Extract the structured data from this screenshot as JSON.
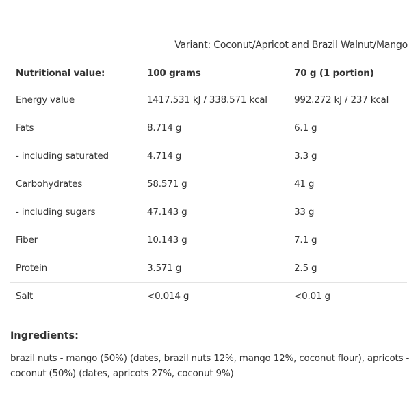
{
  "variant": "Variant: Coconut/Apricot and Brazil Walnut/Mango",
  "table": {
    "headers": [
      "Nutritional value:",
      "100 grams",
      "70 g (1 portion)"
    ],
    "rows": [
      {
        "label": "Energy value",
        "per100": "1417.531 kJ / 338.571 kcal",
        "portion": "992.272 kJ / 237 kcal"
      },
      {
        "label": "Fats",
        "per100": "8.714 g",
        "portion": "6.1 g"
      },
      {
        "label": "- including saturated",
        "per100": "4.714 g",
        "portion": "3.3 g"
      },
      {
        "label": "Carbohydrates",
        "per100": "58.571 g",
        "portion": "41 g"
      },
      {
        "label": "- including sugars",
        "per100": "47.143 g",
        "portion": "33 g"
      },
      {
        "label": "Fiber",
        "per100": "10.143 g",
        "portion": "7.1 g"
      },
      {
        "label": "Protein",
        "per100": "3.571 g",
        "portion": "2.5 g"
      },
      {
        "label": "Salt",
        "per100": "<0.014 g",
        "portion": "<0.01 g"
      }
    ]
  },
  "ingredients": {
    "title": "Ingredients:",
    "text": "brazil nuts - mango (50%) (dates, brazil nuts 12%, mango 12%, coconut flour), apricots - coconut (50%) (dates, apricots 27%, coconut 9%)"
  }
}
